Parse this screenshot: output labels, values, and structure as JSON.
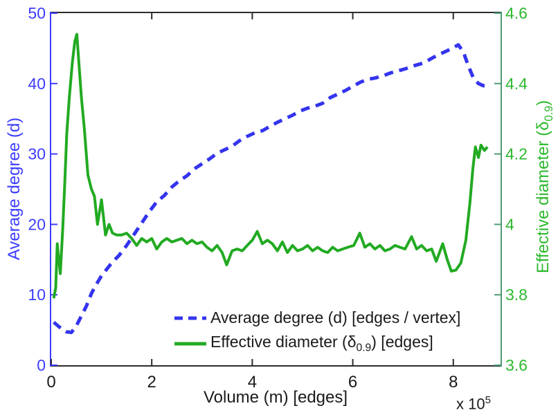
{
  "chart_data": {
    "type": "line",
    "title": "",
    "xlabel": "Volume (m) [edges]",
    "grid": false,
    "x_axis": {
      "tick_labels": [
        "0",
        "2",
        "4",
        "6",
        "8"
      ],
      "tick_values": [
        0,
        2,
        4,
        6,
        8
      ],
      "offset_base": "x 10",
      "offset_exp": "5",
      "unit_multiplier": 100000,
      "xlim": [
        0,
        8.94
      ],
      "color": "#2b2b2b"
    },
    "left_axis": {
      "label": "Average degree (d)",
      "tick_labels": [
        "0",
        "10",
        "20",
        "30",
        "40",
        "50"
      ],
      "tick_values": [
        0,
        10,
        20,
        30,
        40,
        50
      ],
      "ylim": [
        0,
        50
      ],
      "color": "#3d3dff"
    },
    "right_axis": {
      "label_prefix": "Effective diameter (δ",
      "label_sub": "0.9",
      "label_suffix": ")",
      "tick_labels": [
        "3.6",
        "3.8",
        "4",
        "4.2",
        "4.4",
        "4.6"
      ],
      "tick_values": [
        3.6,
        3.8,
        4,
        4.2,
        4.4,
        4.6
      ],
      "ylim": [
        3.6,
        4.6
      ],
      "color": "#2db82d",
      "spine_color": "#4b9b72"
    },
    "legend": {
      "position": "lower center",
      "entries": [
        {
          "label": "Average degree (d) [edges / vertex]",
          "line_style": "dashed",
          "color": "#3434ee"
        },
        {
          "label_prefix": "Effective diameter (δ",
          "label_sub": "0.9",
          "label_suffix": ") [edges]",
          "line_style": "solid",
          "color": "#22aa22"
        }
      ]
    },
    "series": [
      {
        "name": "Average degree (d) [edges / vertex]",
        "axis": "left",
        "color": "#3434ee",
        "line_style": "dashed",
        "x": [
          0.05,
          0.1,
          0.2,
          0.3,
          0.4,
          0.5,
          0.6,
          0.7,
          0.8,
          0.9,
          1.0,
          1.1,
          1.2,
          1.35,
          1.5,
          1.65,
          1.8,
          1.95,
          2.1,
          2.25,
          2.4,
          2.55,
          2.7,
          2.85,
          3.0,
          3.15,
          3.3,
          3.45,
          3.6,
          3.75,
          3.9,
          4.05,
          4.2,
          4.35,
          4.5,
          4.65,
          4.8,
          4.95,
          5.1,
          5.25,
          5.4,
          5.55,
          5.7,
          5.85,
          6.0,
          6.15,
          6.3,
          6.45,
          6.6,
          6.75,
          6.9,
          7.05,
          7.2,
          7.35,
          7.5,
          7.65,
          7.8,
          7.95,
          8.1,
          8.2,
          8.3,
          8.4,
          8.5,
          8.6,
          8.68
        ],
        "y": [
          6.1,
          5.8,
          5.2,
          4.75,
          4.65,
          5.6,
          7.0,
          8.4,
          10.2,
          11.5,
          12.7,
          13.6,
          14.5,
          15.6,
          17.0,
          18.6,
          20.2,
          21.8,
          23.2,
          24.1,
          25.3,
          26.2,
          26.9,
          27.9,
          28.6,
          29.3,
          30.1,
          30.6,
          31.1,
          31.9,
          32.5,
          33.0,
          33.3,
          33.9,
          34.5,
          35.0,
          35.5,
          36.1,
          36.5,
          36.8,
          37.2,
          38.0,
          38.5,
          39.0,
          39.6,
          40.2,
          40.6,
          40.8,
          41.1,
          41.5,
          41.8,
          42.1,
          42.5,
          42.8,
          43.3,
          43.9,
          44.4,
          44.9,
          45.5,
          44.5,
          42.5,
          40.8,
          40.0,
          39.7,
          39.6
        ]
      },
      {
        "name": "Effective diameter (δ 0.9) [edges]",
        "axis": "right",
        "color": "#22aa22",
        "line_style": "solid",
        "x": [
          0.05,
          0.09,
          0.12,
          0.15,
          0.18,
          0.23,
          0.27,
          0.31,
          0.36,
          0.42,
          0.47,
          0.51,
          0.55,
          0.6,
          0.66,
          0.73,
          0.8,
          0.86,
          0.92,
          1.0,
          1.08,
          1.15,
          1.22,
          1.3,
          1.4,
          1.5,
          1.6,
          1.7,
          1.8,
          1.9,
          2.0,
          2.1,
          2.2,
          2.3,
          2.4,
          2.5,
          2.6,
          2.7,
          2.8,
          2.9,
          3.0,
          3.1,
          3.2,
          3.3,
          3.4,
          3.49,
          3.6,
          3.7,
          3.8,
          3.9,
          4.0,
          4.1,
          4.2,
          4.3,
          4.4,
          4.5,
          4.6,
          4.7,
          4.8,
          4.9,
          5.0,
          5.1,
          5.2,
          5.3,
          5.4,
          5.5,
          5.6,
          5.7,
          5.8,
          5.9,
          6.02,
          6.14,
          6.24,
          6.34,
          6.44,
          6.54,
          6.64,
          6.74,
          6.84,
          6.94,
          7.04,
          7.17,
          7.27,
          7.37,
          7.47,
          7.57,
          7.66,
          7.79,
          7.88,
          7.96,
          8.05,
          8.15,
          8.25,
          8.33,
          8.39,
          8.44,
          8.5,
          8.55,
          8.62,
          8.68
        ],
        "y": [
          3.79,
          3.82,
          3.945,
          3.9,
          3.86,
          3.99,
          4.12,
          4.26,
          4.36,
          4.46,
          4.52,
          4.54,
          4.46,
          4.36,
          4.27,
          4.14,
          4.1,
          4.08,
          4.0,
          4.07,
          3.97,
          4.0,
          3.975,
          3.97,
          3.97,
          3.975,
          3.96,
          3.94,
          3.96,
          3.95,
          3.96,
          3.93,
          3.95,
          3.96,
          3.95,
          3.955,
          3.96,
          3.945,
          3.955,
          3.945,
          3.95,
          3.935,
          3.925,
          3.94,
          3.92,
          3.885,
          3.925,
          3.93,
          3.925,
          3.94,
          3.955,
          3.98,
          3.945,
          3.955,
          3.945,
          3.925,
          3.95,
          3.92,
          3.94,
          3.925,
          3.93,
          3.94,
          3.925,
          3.935,
          3.925,
          3.92,
          3.935,
          3.925,
          3.93,
          3.935,
          3.94,
          3.975,
          3.935,
          3.945,
          3.93,
          3.94,
          3.925,
          3.93,
          3.94,
          3.935,
          3.93,
          3.965,
          3.93,
          3.94,
          3.925,
          3.93,
          3.895,
          3.945,
          3.9,
          3.867,
          3.87,
          3.89,
          3.955,
          4.06,
          4.16,
          4.22,
          4.19,
          4.225,
          4.21,
          4.22
        ]
      }
    ]
  }
}
